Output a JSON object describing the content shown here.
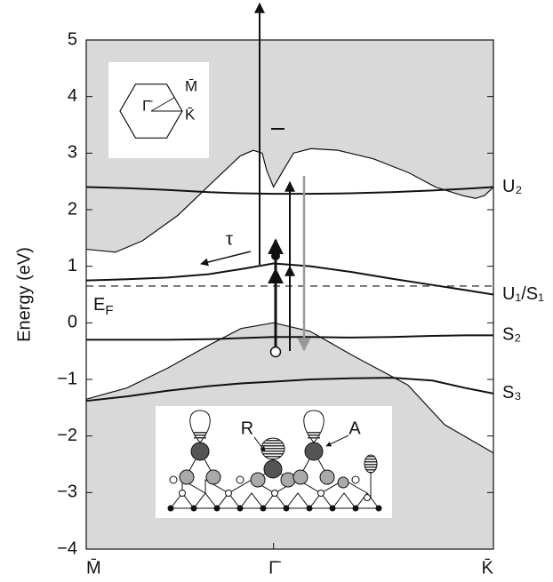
{
  "chart_data": {
    "type": "band",
    "ylabel": "Energy (eV)",
    "xlim": [
      0,
      1
    ],
    "ylim": [
      -4,
      5
    ],
    "xticks": [
      {
        "value": 0,
        "label": "M̄"
      },
      {
        "value": 0.46,
        "label": "Γ̄"
      },
      {
        "value": 1,
        "label": "K̄"
      }
    ],
    "yticks": [
      {
        "value": -4,
        "label": "−4"
      },
      {
        "value": -3,
        "label": "−3"
      },
      {
        "value": -2,
        "label": "−2"
      },
      {
        "value": -1,
        "label": "−1"
      },
      0,
      1,
      2,
      3,
      4,
      5
    ],
    "bulk_color": "#d9d9d9",
    "gap": {
      "x_upper": [
        0,
        0.072,
        0.138,
        0.225,
        0.312,
        0.378,
        0.41,
        0.432,
        0.443,
        0.46,
        0.476,
        0.509,
        0.552,
        0.618,
        0.705,
        0.793,
        0.858,
        0.924,
        0.956,
        0.978,
        1
      ],
      "upper": [
        1.3,
        1.25,
        1.45,
        1.9,
        2.5,
        2.95,
        3.05,
        3.0,
        2.7,
        2.4,
        2.6,
        3.0,
        3.08,
        3.05,
        2.9,
        2.65,
        2.4,
        2.25,
        2.2,
        2.25,
        2.4
      ],
      "x_lower": [
        0,
        0.1,
        0.2,
        0.3,
        0.38,
        0.46,
        0.55,
        0.66,
        0.79,
        0.88,
        1
      ],
      "lower": [
        -1.35,
        -1.15,
        -0.8,
        -0.4,
        -0.1,
        0,
        -0.15,
        -0.6,
        -1.1,
        -1.8,
        -2.3
      ]
    },
    "x": [
      0,
      0.1,
      0.2,
      0.3,
      0.38,
      0.46,
      0.55,
      0.65,
      0.75,
      0.85,
      0.93,
      1
    ],
    "series": [
      {
        "name": "U₂",
        "color": "#111111",
        "values": [
          2.4,
          2.38,
          2.35,
          2.31,
          2.29,
          2.28,
          2.28,
          2.29,
          2.31,
          2.34,
          2.37,
          2.4
        ]
      },
      {
        "name": "U₁/S₁",
        "color": "#111111",
        "values": [
          0.75,
          0.77,
          0.8,
          0.86,
          0.95,
          1.05,
          1.0,
          0.9,
          0.78,
          0.67,
          0.58,
          0.5
        ]
      },
      {
        "name": "S₂",
        "color": "#111111",
        "values": [
          -0.3,
          -0.3,
          -0.3,
          -0.29,
          -0.27,
          -0.25,
          -0.25,
          -0.26,
          -0.25,
          -0.23,
          -0.22,
          -0.22
        ]
      },
      {
        "name": "S₃",
        "color": "#111111",
        "values": [
          -1.38,
          -1.3,
          -1.2,
          -1.12,
          -1.07,
          -1.04,
          -1.0,
          -0.98,
          -0.97,
          -1.02,
          -1.15,
          -1.25
        ]
      }
    ],
    "fermi_level": 0.65,
    "fermi_label": "E",
    "fermi_label_sub": "F",
    "tau": "τ",
    "bz_labels": [
      "Γ̄",
      "M̄",
      "K̄"
    ],
    "structure_labels": [
      "R",
      "A"
    ]
  }
}
